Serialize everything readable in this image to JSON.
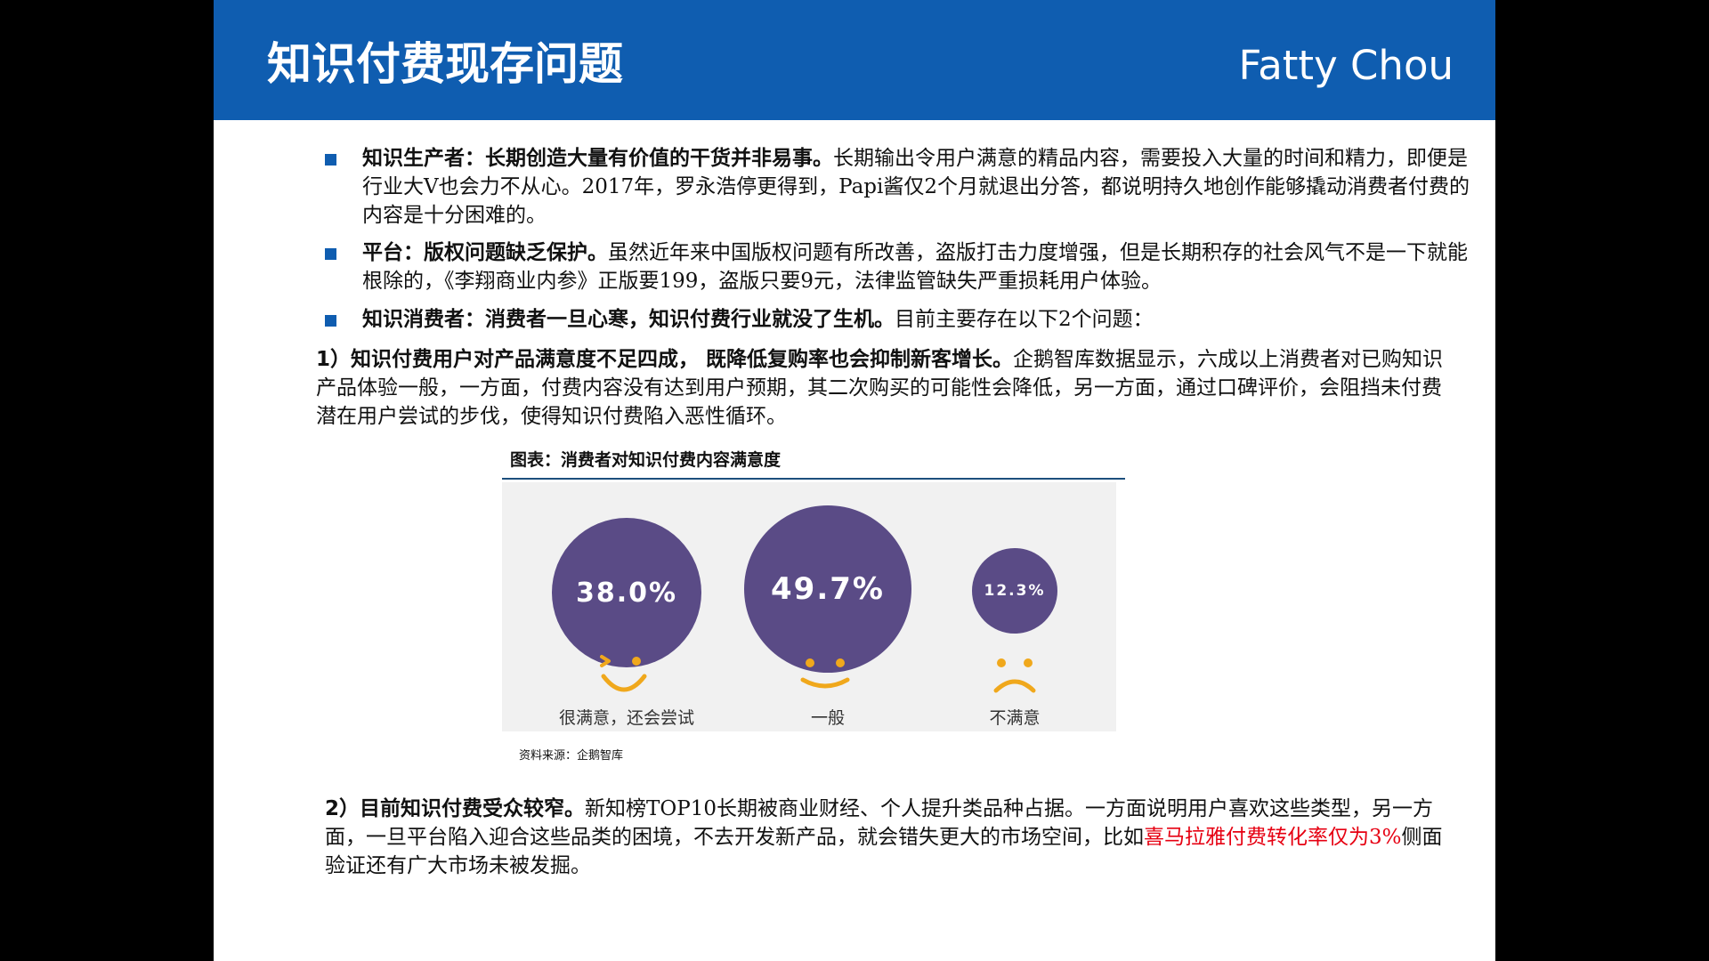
{
  "header": {
    "title": "知识付费现存问题",
    "brand": "Fatty Chou",
    "bar_color": "#0f5db0"
  },
  "bullets": [
    {
      "lead": "知识生产者：长期创造大量有价值的干货并非易事。",
      "body": "长期输出令用户满意的精品内容，需要投入大量的时间和精力，即便是行业大V也会力不从心。2017年，罗永浩停更得到，Papi酱仅2个月就退出分答，都说明持久地创作能够撬动消费者付费的内容是十分困难的。"
    },
    {
      "lead": "平台：版权问题缺乏保护。",
      "body": "虽然近年来中国版权问题有所改善，盗版打击力度增强，但是长期积存的社会风气不是一下就能根除的，《李翔商业内参》正版要199，盗版只要9元，法律监管缺失严重损耗用户体验。"
    },
    {
      "lead": "知识消费者：消费者一旦心寒，知识付费行业就没了生机。",
      "body": "目前主要存在以下2个问题："
    }
  ],
  "point1": {
    "lead": "1）知识付费用户对产品满意度不足四成， 既降低复购率也会抑制新客增长。",
    "body": "企鹅智库数据显示，六成以上消费者对已购知识产品体验一般，一方面，付费内容没有达到用户预期，其二次购买的可能性会降低，另一方面，通过口碑评价，会阻挡未付费潜在用户尝试的步伐，使得知识付费陷入恶性循环。"
  },
  "chart_caption": "图表：消费者对知识付费内容满意度",
  "chart_data": {
    "type": "bubble",
    "title": "图表：消费者对知识付费内容满意度",
    "categories": [
      "很满意，还会尝试",
      "一般",
      "不满意"
    ],
    "values": [
      38.0,
      49.7,
      12.3
    ],
    "value_labels": [
      "38.0%",
      "49.7%",
      "12.3%"
    ],
    "color": "#5a4b86",
    "face_color": "#f0a81c",
    "faces": [
      "laughing-face-icon",
      "smiling-face-icon",
      "frowning-face-icon"
    ]
  },
  "source": "资料来源：企鹅智库",
  "point2": {
    "lead": "2）目前知识付费受众较窄。",
    "body": "新知榜TOP10长期被商业财经、个人提升类品种占据。一方面说明用户喜欢这些类型，另一方面，一旦平台陷入迎合这些品类的困境，不去开发新产品，就会错失更大的市场空间，比如",
    "highlight": "喜马拉雅付费转化率仅为3%",
    "tail": "侧面验证还有广大市场未被发掘。",
    "highlight_color": "#e60012"
  }
}
